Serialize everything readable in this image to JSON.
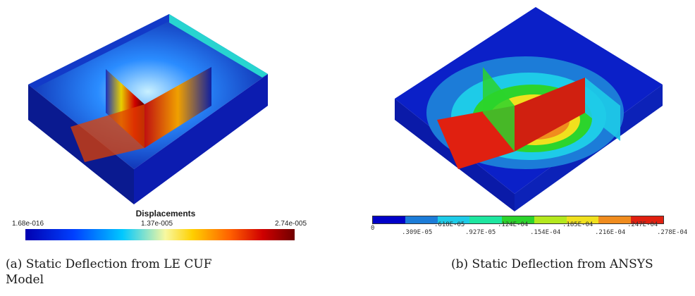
{
  "panel_a": {
    "legend_title": "Displacements",
    "legend_min": "1.68e-016",
    "legend_mid": "1.37e-005",
    "legend_max": "2.74e-005",
    "caption": "(a) Static Deflection from LE CUF Model"
  },
  "panel_b": {
    "tick_labels": [
      "0",
      ".309E-05",
      ".618E-05",
      ".927E-05",
      ".124E-04",
      ".154E-04",
      ".185E-04",
      ".216E-04",
      ".247E-04",
      ".278E-04"
    ],
    "band_colors": [
      "#0000c8",
      "#1c7cd8",
      "#1ecbe8",
      "#1ee6a0",
      "#2cd42c",
      "#b4e81e",
      "#f0e01e",
      "#f08c1e",
      "#e02010"
    ],
    "caption": "(b) Static Deflection from ANSYS"
  }
}
